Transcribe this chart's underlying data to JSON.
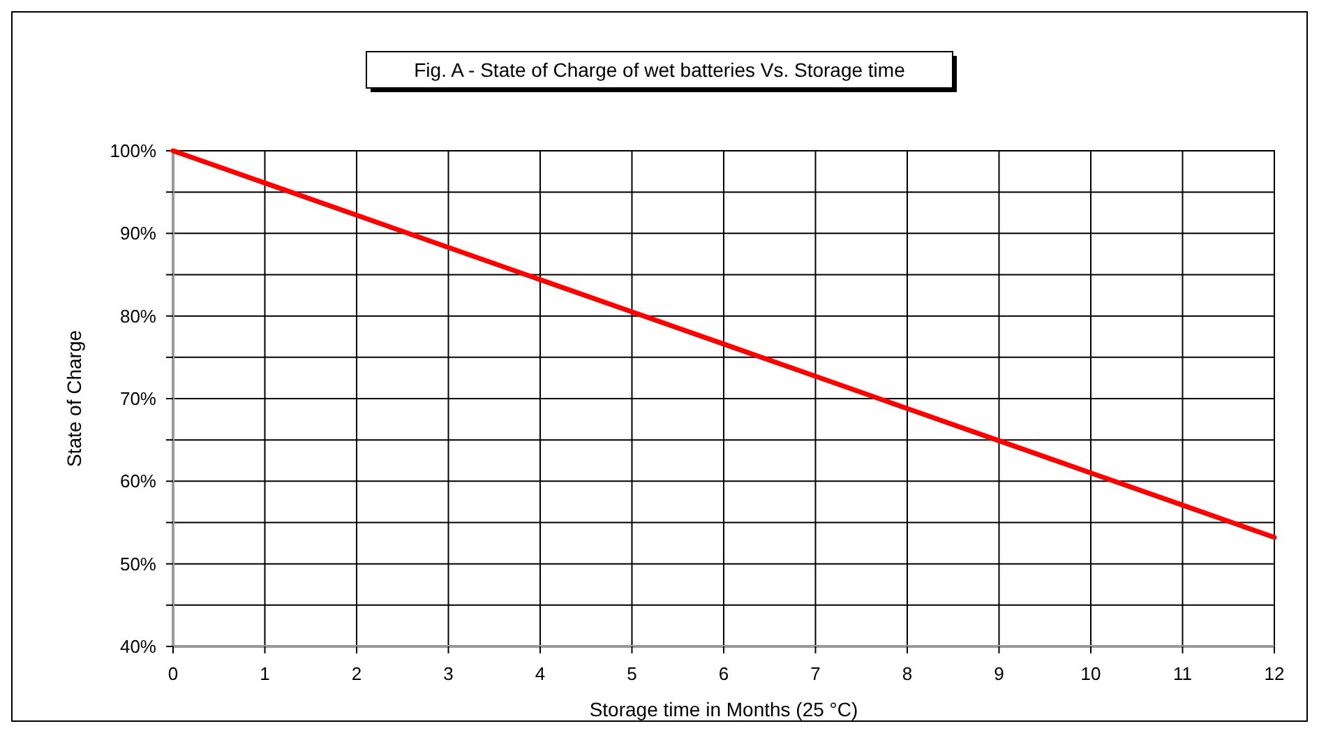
{
  "chart_data": {
    "type": "line",
    "title": "Fig. A - State of Charge of wet batteries Vs. Storage time",
    "xlabel": "Storage time in Months (25 °C)",
    "ylabel": "State of Charge",
    "x": [
      0,
      1,
      2,
      3,
      4,
      5,
      6,
      7,
      8,
      9,
      10,
      11,
      12
    ],
    "series": [
      {
        "color": "#ff0000",
        "values": [
          100,
          96.1,
          92.2,
          88.3,
          84.4,
          80.5,
          76.6,
          72.7,
          68.8,
          64.9,
          61,
          57.1,
          53.2
        ]
      }
    ],
    "xlim": [
      0,
      12
    ],
    "xticks": [
      0,
      1,
      2,
      3,
      4,
      5,
      6,
      7,
      8,
      9,
      10,
      11,
      12
    ],
    "ylim": [
      40,
      100
    ],
    "yticks": [
      {
        "value": 40,
        "label": "40%"
      },
      {
        "value": 45,
        "label": null
      },
      {
        "value": 50,
        "label": "50%"
      },
      {
        "value": 55,
        "label": null
      },
      {
        "value": 60,
        "label": "60%"
      },
      {
        "value": 65,
        "label": null
      },
      {
        "value": 70,
        "label": "70%"
      },
      {
        "value": 75,
        "label": null
      },
      {
        "value": 80,
        "label": "80%"
      },
      {
        "value": 85,
        "label": null
      },
      {
        "value": 90,
        "label": "90%"
      },
      {
        "value": 95,
        "label": null
      },
      {
        "value": 100,
        "label": "100%"
      }
    ],
    "grid": true,
    "marker": "none",
    "line_style": "solid"
  }
}
